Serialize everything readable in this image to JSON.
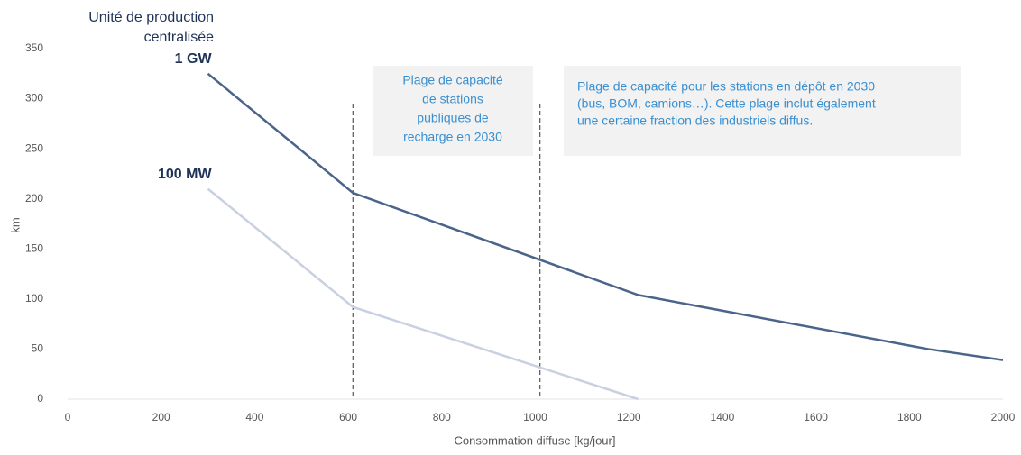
{
  "chart_data": {
    "type": "line",
    "title_lines": [
      "Unité de production",
      "centralisée"
    ],
    "x_label": "Consommation diffuse [kg/jour]",
    "y_label": "km",
    "xlim": [
      0,
      2000
    ],
    "ylim": [
      0,
      350
    ],
    "xticks": [
      0,
      200,
      400,
      600,
      800,
      1000,
      1200,
      1400,
      1600,
      1800,
      2000
    ],
    "yticks": [
      0,
      50,
      100,
      150,
      200,
      250,
      300,
      350
    ],
    "series": [
      {
        "name": "1 GW",
        "color": "#4a6589",
        "x": [
          300,
          610,
          1220,
          1840,
          2000
        ],
        "values": [
          325,
          206,
          104,
          50,
          39
        ]
      },
      {
        "name": "100 MW",
        "color": "#c9d0e0",
        "x": [
          300,
          610,
          1220
        ],
        "values": [
          210,
          92,
          0
        ]
      }
    ],
    "vlines": [
      610,
      1010
    ],
    "annotations": [
      {
        "lines": [
          "Plage de capacité",
          "de stations",
          "publiques de",
          "recharge en 2030"
        ]
      },
      {
        "lines": [
          "Plage de capacité pour les stations en dépôt en 2030",
          "(bus, BOM, camions…). Cette plage inclut également",
          "une certaine fraction des industriels diffus."
        ]
      }
    ]
  }
}
